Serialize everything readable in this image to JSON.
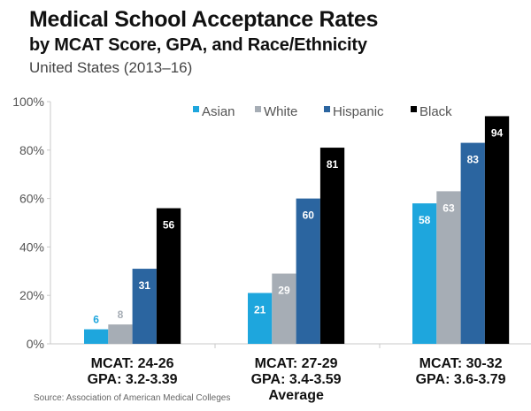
{
  "chart_data": {
    "type": "bar",
    "title": "Medical School Acceptance Rates",
    "subtitle": "by MCAT Score, GPA, and Race/Ethnicity",
    "period": "United States (2013–16)",
    "xlabel": "",
    "ylabel": "",
    "ylim": [
      0,
      100
    ],
    "yticks": [
      "0%",
      "20%",
      "40%",
      "60%",
      "80%",
      "100%"
    ],
    "ytick_values": [
      0,
      20,
      40,
      60,
      80,
      100
    ],
    "grid": false,
    "legend_position": "top-center",
    "categories": [
      [
        "MCAT: 24-26",
        "GPA: 3.2-3.39"
      ],
      [
        "MCAT: 27-29",
        "GPA: 3.4-3.59",
        "Average"
      ],
      [
        "MCAT: 30-32",
        "GPA: 3.6-3.79"
      ]
    ],
    "series": [
      {
        "name": "Asian",
        "color": "#1ea6dd",
        "label_color": "#1ea6dd",
        "values": [
          6,
          21,
          58
        ]
      },
      {
        "name": "White",
        "color": "#a6adb5",
        "label_color": "#a6adb5",
        "values": [
          8,
          29,
          63
        ]
      },
      {
        "name": "Hispanic",
        "color": "#2b65a0",
        "label_color": "#ffffff",
        "values": [
          31,
          60,
          83
        ]
      },
      {
        "name": "Black",
        "color": "#000000",
        "label_color": "#ffffff",
        "values": [
          56,
          81,
          94
        ]
      }
    ],
    "source": "Source: Association of American Medical Colleges"
  }
}
